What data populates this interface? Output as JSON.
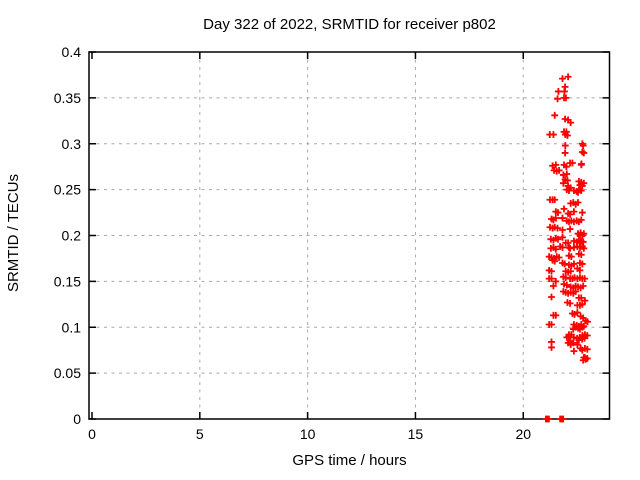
{
  "colors": {
    "background": "#ffffff",
    "border": "#000000",
    "grid": "#a8a8a8",
    "text": "#000000",
    "marker": "#ff0000"
  },
  "chart_data": {
    "type": "scatter",
    "title": "Day 322 of 2022, SRMTID for receiver p802",
    "xlabel": "GPS time / hours",
    "ylabel": "SRMTID / TECUs",
    "xlim": [
      0,
      24
    ],
    "ylim": [
      0,
      0.4
    ],
    "grid": true,
    "legend": "none",
    "marker": "plus",
    "xticks": {
      "values": [
        0,
        5,
        10,
        15,
        20
      ],
      "labels": [
        "0",
        "5",
        "10",
        "15",
        "20"
      ]
    },
    "yticks": {
      "values": [
        0,
        0.05,
        0.1,
        0.15,
        0.2,
        0.25,
        0.3,
        0.35,
        0.4
      ],
      "labels": [
        "0",
        "0.05",
        "0.1",
        "0.15",
        "0.2",
        "0.25",
        "0.3",
        "0.35",
        "0.4"
      ]
    },
    "series": [
      {
        "name": "SRMTID",
        "color": "#ff0000",
        "points": [
          [
            21.82,
            0.371
          ],
          [
            22.08,
            0.373
          ],
          [
            21.94,
            0.362
          ],
          [
            21.63,
            0.357
          ],
          [
            21.91,
            0.357
          ],
          [
            21.59,
            0.349
          ],
          [
            21.89,
            0.35
          ],
          [
            21.98,
            0.35
          ],
          [
            21.46,
            0.331
          ],
          [
            21.94,
            0.327
          ],
          [
            22.08,
            0.326
          ],
          [
            22.2,
            0.323
          ],
          [
            21.23,
            0.31
          ],
          [
            21.4,
            0.31
          ],
          [
            21.89,
            0.313
          ],
          [
            22.0,
            0.313
          ],
          [
            21.95,
            0.31
          ],
          [
            22.05,
            0.309
          ],
          [
            22.74,
            0.3
          ],
          [
            22.78,
            0.298
          ],
          [
            21.95,
            0.298
          ],
          [
            22.74,
            0.291
          ],
          [
            21.94,
            0.29
          ],
          [
            22.81,
            0.29
          ],
          [
            21.36,
            0.276
          ],
          [
            21.51,
            0.277
          ],
          [
            21.43,
            0.271
          ],
          [
            21.55,
            0.27
          ],
          [
            21.66,
            0.271
          ],
          [
            21.89,
            0.277
          ],
          [
            22.0,
            0.275
          ],
          [
            22.17,
            0.279
          ],
          [
            22.28,
            0.279
          ],
          [
            22.69,
            0.277
          ],
          [
            22.7,
            0.278
          ],
          [
            21.86,
            0.266
          ],
          [
            22.02,
            0.267
          ],
          [
            21.94,
            0.261
          ],
          [
            22.05,
            0.26
          ],
          [
            21.86,
            0.257
          ],
          [
            22.08,
            0.254
          ],
          [
            22.2,
            0.252
          ],
          [
            22.58,
            0.259
          ],
          [
            22.69,
            0.258
          ],
          [
            22.63,
            0.255
          ],
          [
            22.74,
            0.254
          ],
          [
            22.81,
            0.257
          ],
          [
            22.02,
            0.25
          ],
          [
            22.12,
            0.249
          ],
          [
            22.35,
            0.249
          ],
          [
            22.48,
            0.248
          ],
          [
            22.58,
            0.25
          ],
          [
            22.69,
            0.249
          ],
          [
            22.54,
            0.247
          ],
          [
            21.24,
            0.239
          ],
          [
            21.36,
            0.239
          ],
          [
            21.46,
            0.239
          ],
          [
            22.2,
            0.235
          ],
          [
            22.32,
            0.236
          ],
          [
            22.43,
            0.234
          ],
          [
            22.54,
            0.236
          ],
          [
            21.51,
            0.226
          ],
          [
            21.61,
            0.225
          ],
          [
            21.89,
            0.229
          ],
          [
            22.08,
            0.224
          ],
          [
            22.17,
            0.223
          ],
          [
            22.35,
            0.226
          ],
          [
            22.74,
            0.225
          ],
          [
            21.31,
            0.218
          ],
          [
            21.4,
            0.217
          ],
          [
            21.51,
            0.219
          ],
          [
            21.82,
            0.219
          ],
          [
            22.02,
            0.216
          ],
          [
            22.12,
            0.215
          ],
          [
            22.23,
            0.216
          ],
          [
            22.35,
            0.215
          ],
          [
            22.48,
            0.216
          ],
          [
            22.58,
            0.215
          ],
          [
            22.69,
            0.217
          ],
          [
            21.24,
            0.209
          ],
          [
            21.36,
            0.208
          ],
          [
            21.46,
            0.209
          ],
          [
            21.59,
            0.208
          ],
          [
            21.82,
            0.206
          ],
          [
            22.17,
            0.207
          ],
          [
            22.54,
            0.202
          ],
          [
            22.66,
            0.203
          ],
          [
            22.74,
            0.2
          ],
          [
            22.63,
            0.2
          ],
          [
            22.81,
            0.202
          ],
          [
            21.28,
            0.196
          ],
          [
            21.4,
            0.195
          ],
          [
            21.51,
            0.197
          ],
          [
            21.61,
            0.196
          ],
          [
            21.82,
            0.198
          ],
          [
            21.97,
            0.192
          ],
          [
            22.08,
            0.192
          ],
          [
            22.35,
            0.194
          ],
          [
            22.48,
            0.193
          ],
          [
            22.58,
            0.195
          ],
          [
            22.69,
            0.194
          ],
          [
            22.78,
            0.193
          ],
          [
            22.63,
            0.192
          ],
          [
            21.71,
            0.188
          ],
          [
            21.82,
            0.187
          ],
          [
            22.17,
            0.186
          ],
          [
            22.35,
            0.187
          ],
          [
            22.74,
            0.188
          ],
          [
            22.81,
            0.186
          ],
          [
            21.28,
            0.186
          ],
          [
            21.4,
            0.187
          ],
          [
            21.51,
            0.185
          ],
          [
            22.12,
            0.187
          ],
          [
            22.51,
            0.188
          ],
          [
            22.63,
            0.187
          ],
          [
            21.2,
            0.177
          ],
          [
            21.31,
            0.176
          ],
          [
            21.43,
            0.175
          ],
          [
            21.55,
            0.177
          ],
          [
            21.66,
            0.176
          ],
          [
            21.36,
            0.173
          ],
          [
            21.46,
            0.172
          ],
          [
            22.12,
            0.178
          ],
          [
            22.23,
            0.177
          ],
          [
            22.58,
            0.18
          ],
          [
            22.69,
            0.179
          ],
          [
            21.82,
            0.17
          ],
          [
            21.92,
            0.169
          ],
          [
            22.12,
            0.168
          ],
          [
            22.23,
            0.167
          ],
          [
            22.35,
            0.169
          ],
          [
            22.63,
            0.17
          ],
          [
            22.74,
            0.169
          ],
          [
            21.2,
            0.162
          ],
          [
            21.31,
            0.161
          ],
          [
            21.97,
            0.161
          ],
          [
            22.08,
            0.16
          ],
          [
            22.2,
            0.161
          ],
          [
            22.51,
            0.164
          ],
          [
            22.63,
            0.162
          ],
          [
            21.2,
            0.153
          ],
          [
            21.31,
            0.153
          ],
          [
            21.51,
            0.15
          ],
          [
            21.86,
            0.155
          ],
          [
            21.97,
            0.154
          ],
          [
            22.17,
            0.153
          ],
          [
            22.28,
            0.153
          ],
          [
            22.38,
            0.154
          ],
          [
            22.51,
            0.153
          ],
          [
            22.63,
            0.154
          ],
          [
            22.74,
            0.153
          ],
          [
            22.85,
            0.153
          ],
          [
            21.4,
            0.145
          ],
          [
            21.89,
            0.147
          ],
          [
            22.02,
            0.146
          ],
          [
            22.2,
            0.144
          ],
          [
            22.32,
            0.143
          ],
          [
            22.43,
            0.145
          ],
          [
            22.54,
            0.144
          ],
          [
            22.66,
            0.143
          ],
          [
            22.78,
            0.145
          ],
          [
            21.86,
            0.139
          ],
          [
            21.97,
            0.138
          ],
          [
            22.08,
            0.137
          ],
          [
            22.2,
            0.138
          ],
          [
            22.32,
            0.137
          ],
          [
            22.43,
            0.139
          ],
          [
            21.31,
            0.133
          ],
          [
            22.58,
            0.132
          ],
          [
            22.69,
            0.132
          ],
          [
            22.05,
            0.127
          ],
          [
            22.17,
            0.126
          ],
          [
            22.51,
            0.124
          ],
          [
            22.63,
            0.124
          ],
          [
            22.74,
            0.125
          ],
          [
            22.86,
            0.129
          ],
          [
            21.4,
            0.113
          ],
          [
            21.51,
            0.113
          ],
          [
            22.28,
            0.115
          ],
          [
            22.38,
            0.114
          ],
          [
            22.51,
            0.116
          ],
          [
            22.66,
            0.112
          ],
          [
            22.78,
            0.11
          ],
          [
            22.89,
            0.107
          ],
          [
            22.98,
            0.106
          ],
          [
            21.2,
            0.103
          ],
          [
            21.31,
            0.103
          ],
          [
            22.35,
            0.103
          ],
          [
            22.48,
            0.102
          ],
          [
            22.58,
            0.101
          ],
          [
            22.69,
            0.103
          ],
          [
            22.43,
            0.1
          ],
          [
            22.54,
            0.099
          ],
          [
            22.63,
            0.098
          ],
          [
            22.74,
            0.1
          ],
          [
            22.81,
            0.101
          ],
          [
            22.32,
            0.098
          ],
          [
            22.12,
            0.092
          ],
          [
            22.23,
            0.092
          ],
          [
            22.74,
            0.091
          ],
          [
            22.85,
            0.09
          ],
          [
            22.86,
            0.092
          ],
          [
            22.97,
            0.091
          ],
          [
            22.02,
            0.089
          ],
          [
            22.11,
            0.09
          ],
          [
            22.34,
            0.089
          ],
          [
            22.5,
            0.088
          ],
          [
            22.62,
            0.089
          ],
          [
            22.84,
            0.088
          ],
          [
            22.73,
            0.087
          ],
          [
            22.19,
            0.085
          ],
          [
            22.58,
            0.086
          ],
          [
            21.31,
            0.084
          ],
          [
            22.08,
            0.083
          ],
          [
            22.2,
            0.081
          ],
          [
            22.32,
            0.083
          ],
          [
            22.51,
            0.081
          ],
          [
            21.31,
            0.078
          ],
          [
            22.35,
            0.074
          ],
          [
            22.74,
            0.075
          ],
          [
            22.66,
            0.077
          ],
          [
            22.86,
            0.077
          ],
          [
            22.97,
            0.076
          ],
          [
            22.81,
            0.067
          ],
          [
            22.89,
            0.065
          ],
          [
            22.78,
            0.064
          ],
          [
            22.86,
            0.067
          ],
          [
            22.97,
            0.066
          ],
          [
            21.05,
            0
          ],
          [
            21.12,
            0
          ],
          [
            21.19,
            0
          ],
          [
            21.71,
            0
          ],
          [
            21.78,
            0
          ],
          [
            21.85,
            0
          ]
        ]
      }
    ]
  }
}
